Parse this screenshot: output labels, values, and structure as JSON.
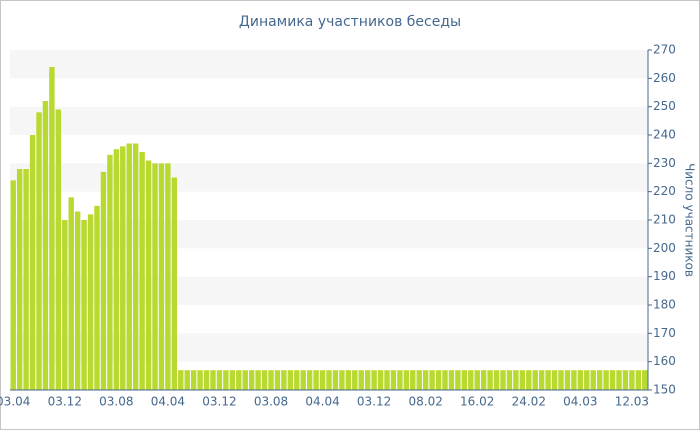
{
  "chart_data": {
    "type": "bar",
    "title": "Динамика участников беседы",
    "y_label": "Число участников",
    "categories": [
      "03.04",
      null,
      null,
      null,
      null,
      null,
      null,
      null,
      "03.12",
      null,
      null,
      null,
      null,
      null,
      null,
      null,
      "03.08",
      null,
      null,
      null,
      null,
      null,
      null,
      null,
      "04.04",
      null,
      null,
      null,
      null,
      null,
      null,
      null,
      "03.12",
      null,
      null,
      null,
      null,
      null,
      null,
      null,
      "03.08",
      null,
      null,
      null,
      null,
      null,
      null,
      null,
      "04.04",
      null,
      null,
      null,
      null,
      null,
      null,
      null,
      "03.12",
      null,
      null,
      null,
      null,
      null,
      null,
      null,
      "08.02",
      null,
      null,
      null,
      null,
      null,
      null,
      null,
      "16.02",
      null,
      null,
      null,
      null,
      null,
      null,
      null,
      "24.02",
      null,
      null,
      null,
      null,
      null,
      null,
      null,
      "04.03",
      null,
      null,
      null,
      null,
      null,
      null,
      null,
      "12.03",
      null,
      null
    ],
    "values": [
      224,
      228,
      228,
      240,
      248,
      252,
      264,
      249,
      210,
      218,
      213,
      210,
      212,
      215,
      227,
      233,
      235,
      236,
      237,
      237,
      234,
      231,
      230,
      230,
      230,
      225,
      157,
      157,
      157,
      157,
      157,
      157,
      157,
      157,
      157,
      157,
      157,
      157,
      157,
      157,
      157,
      157,
      157,
      157,
      157,
      157,
      157,
      157,
      157,
      157,
      157,
      157,
      157,
      157,
      157,
      157,
      157,
      157,
      157,
      157,
      157,
      157,
      157,
      157,
      157,
      157,
      157,
      157,
      157,
      157,
      157,
      157,
      157,
      157,
      157,
      157,
      157,
      157,
      157,
      157,
      157,
      157,
      157,
      157,
      157,
      157,
      157,
      157,
      157,
      157,
      157,
      157,
      157,
      157,
      157,
      157,
      157,
      157,
      157
    ],
    "color": "#b8d930",
    "ylim": [
      150,
      270
    ],
    "yticks": [
      150,
      160,
      170,
      180,
      190,
      200,
      210,
      220,
      230,
      240,
      250,
      260,
      270
    ],
    "grid": true
  }
}
